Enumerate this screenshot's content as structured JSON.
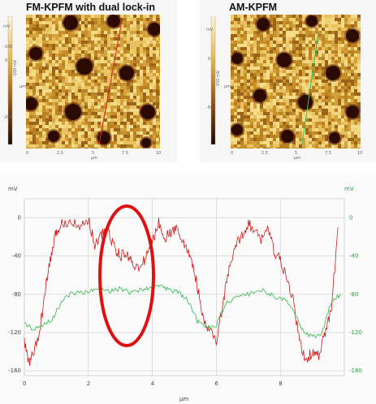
{
  "panels": [
    {
      "title": "FM-KPFM with dual lock-in",
      "colorbar_unit": "mV",
      "colorbar_ticks": [
        "-100",
        "0",
        "-200"
      ],
      "colorbar_side_label": "-100 mV",
      "x_ticks": [
        "0",
        "2.5",
        "5",
        "7.5",
        "10"
      ],
      "y_ticks": [
        "10",
        "7.5",
        "5",
        "2.5",
        "0"
      ],
      "x_unit": "µm",
      "y_unit": "µm",
      "line_color": "#e02020"
    },
    {
      "title": "AM-KPFM",
      "colorbar_unit": "mV",
      "colorbar_ticks": [
        "0",
        "-50"
      ],
      "colorbar_side_label": "-150 mV",
      "x_ticks": [
        "0",
        "2.5",
        "5",
        "7.5",
        "10"
      ],
      "y_ticks": [
        "10",
        "7.5",
        "5",
        "2.5",
        "0"
      ],
      "x_unit": "µm",
      "y_unit": "µm",
      "line_color": "#30c060"
    }
  ],
  "chart_data": {
    "type": "line",
    "xlabel": "µm",
    "ylabel_left": "mV",
    "ylabel_right": "mV",
    "xlim": [
      0,
      10
    ],
    "ylim": [
      -165,
      20
    ],
    "x_ticks": [
      "0",
      "2",
      "4",
      "6",
      "8"
    ],
    "y_ticks_left": [
      "0",
      "-40",
      "-80",
      "-120",
      "-160"
    ],
    "y_ticks_right": [
      "0",
      "-40",
      "-80",
      "-120",
      "-160"
    ],
    "grid": true,
    "series": [
      {
        "color": "#d01818",
        "x": [
          0.0,
          0.15,
          0.3,
          0.45,
          0.6,
          0.75,
          0.9,
          1.0,
          1.2,
          1.5,
          1.8,
          2.0,
          2.2,
          2.4,
          2.6,
          2.8,
          3.0,
          3.2,
          3.4,
          3.6,
          3.8,
          4.0,
          4.2,
          4.4,
          4.6,
          4.8,
          5.0,
          5.2,
          5.4,
          5.6,
          5.8,
          6.0,
          6.2,
          6.4,
          6.6,
          6.8,
          7.0,
          7.2,
          7.4,
          7.6,
          7.8,
          8.0,
          8.2,
          8.4,
          8.6,
          8.8,
          9.0,
          9.2,
          9.4,
          9.6,
          9.8
        ],
        "values": [
          -130,
          -152,
          -140,
          -125,
          -90,
          -55,
          -30,
          -15,
          -5,
          -2,
          -10,
          0,
          -28,
          -18,
          -12,
          -30,
          -40,
          -38,
          -47,
          -55,
          -40,
          -25,
          -5,
          -20,
          -15,
          -10,
          -30,
          -40,
          -70,
          -110,
          -118,
          -130,
          -90,
          -55,
          -30,
          -18,
          -5,
          -15,
          -22,
          -10,
          -35,
          -45,
          -65,
          -85,
          -130,
          -150,
          -140,
          -145,
          -120,
          -95,
          -10
        ]
      },
      {
        "color": "#2fb84a",
        "x": [
          0.0,
          0.3,
          0.6,
          0.9,
          1.2,
          1.5,
          1.8,
          2.1,
          2.4,
          2.7,
          3.0,
          3.3,
          3.6,
          3.9,
          4.2,
          4.5,
          4.8,
          5.1,
          5.4,
          5.7,
          6.0,
          6.3,
          6.6,
          6.9,
          7.2,
          7.5,
          7.8,
          8.1,
          8.4,
          8.7,
          9.0,
          9.3,
          9.6,
          9.9
        ],
        "values": [
          -110,
          -117,
          -112,
          -105,
          -85,
          -78,
          -79,
          -76,
          -75,
          -77,
          -74,
          -78,
          -76,
          -73,
          -70,
          -75,
          -78,
          -86,
          -108,
          -114,
          -112,
          -90,
          -84,
          -80,
          -78,
          -76,
          -82,
          -85,
          -95,
          -118,
          -125,
          -122,
          -86,
          -80
        ]
      }
    ],
    "annotation": "red ellipse highlighting region around x = 2.4 to 4.0 µm"
  }
}
